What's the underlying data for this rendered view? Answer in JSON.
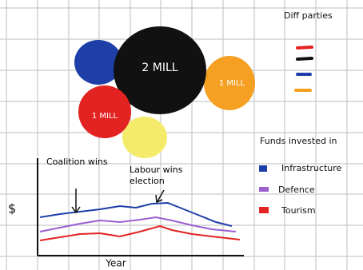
{
  "bubbles": {
    "labels": [
      "2 MILL",
      "1 MILL",
      "1 MILL"
    ],
    "legend_title": "Diff parties"
  },
  "funds": {
    "legend_title": "Funds invested in",
    "items": [
      "Infrastructure",
      "Defence",
      "Tourism"
    ],
    "y_label": "$",
    "x_label": "Year",
    "annotations": [
      "Coalition wins",
      "Labour wins election"
    ]
  }
}
